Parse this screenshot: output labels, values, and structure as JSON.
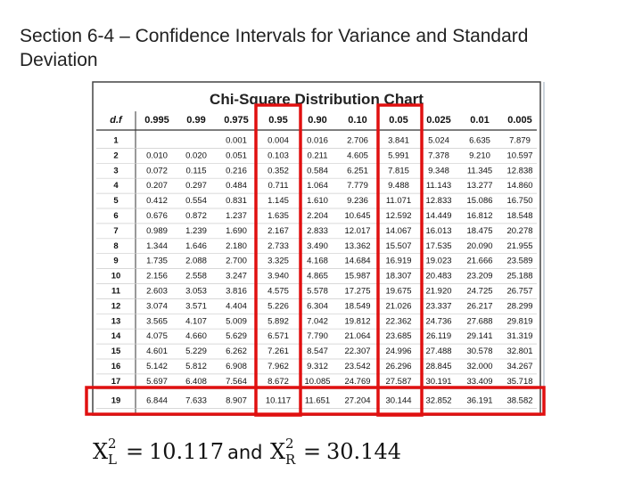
{
  "slide_title": "Section 6-4 – Confidence Intervals for Variance and Standard Deviation",
  "table": {
    "title": "Chi-Square Distribution Chart",
    "header": [
      "d.f",
      "0.995",
      "0.99",
      "0.975",
      "0.95",
      "0.90",
      "0.10",
      "0.05",
      "0.025",
      "0.01",
      "0.005"
    ],
    "rows": [
      [
        "1",
        null,
        null,
        "0.001",
        "0.004",
        "0.016",
        "2.706",
        "3.841",
        "5.024",
        "6.635",
        "7.879"
      ],
      [
        "2",
        "0.010",
        "0.020",
        "0.051",
        "0.103",
        "0.211",
        "4.605",
        "5.991",
        "7.378",
        "9.210",
        "10.597"
      ],
      [
        "3",
        "0.072",
        "0.115",
        "0.216",
        "0.352",
        "0.584",
        "6.251",
        "7.815",
        "9.348",
        "11.345",
        "12.838"
      ],
      [
        "4",
        "0.207",
        "0.297",
        "0.484",
        "0.711",
        "1.064",
        "7.779",
        "9.488",
        "11.143",
        "13.277",
        "14.860"
      ],
      [
        "5",
        "0.412",
        "0.554",
        "0.831",
        "1.145",
        "1.610",
        "9.236",
        "11.071",
        "12.833",
        "15.086",
        "16.750"
      ],
      [
        "6",
        "0.676",
        "0.872",
        "1.237",
        "1.635",
        "2.204",
        "10.645",
        "12.592",
        "14.449",
        "16.812",
        "18.548"
      ],
      [
        "7",
        "0.989",
        "1.239",
        "1.690",
        "2.167",
        "2.833",
        "12.017",
        "14.067",
        "16.013",
        "18.475",
        "20.278"
      ],
      [
        "8",
        "1.344",
        "1.646",
        "2.180",
        "2.733",
        "3.490",
        "13.362",
        "15.507",
        "17.535",
        "20.090",
        "21.955"
      ],
      [
        "9",
        "1.735",
        "2.088",
        "2.700",
        "3.325",
        "4.168",
        "14.684",
        "16.919",
        "19.023",
        "21.666",
        "23.589"
      ],
      [
        "10",
        "2.156",
        "2.558",
        "3.247",
        "3.940",
        "4.865",
        "15.987",
        "18.307",
        "20.483",
        "23.209",
        "25.188"
      ],
      [
        "11",
        "2.603",
        "3.053",
        "3.816",
        "4.575",
        "5.578",
        "17.275",
        "19.675",
        "21.920",
        "24.725",
        "26.757"
      ],
      [
        "12",
        "3.074",
        "3.571",
        "4.404",
        "5.226",
        "6.304",
        "18.549",
        "21.026",
        "23.337",
        "26.217",
        "28.299"
      ],
      [
        "13",
        "3.565",
        "4.107",
        "5.009",
        "5.892",
        "7.042",
        "19.812",
        "22.362",
        "24.736",
        "27.688",
        "29.819"
      ],
      [
        "14",
        "4.075",
        "4.660",
        "5.629",
        "6.571",
        "7.790",
        "21.064",
        "23.685",
        "26.119",
        "29.141",
        "31.319"
      ],
      [
        "15",
        "4.601",
        "5.229",
        "6.262",
        "7.261",
        "8.547",
        "22.307",
        "24.996",
        "27.488",
        "30.578",
        "32.801"
      ],
      [
        "16",
        "5.142",
        "5.812",
        "6.908",
        "7.962",
        "9.312",
        "23.542",
        "26.296",
        "28.845",
        "32.000",
        "34.267"
      ],
      [
        "17",
        "5.697",
        "6.408",
        "7.564",
        "8.672",
        "10.085",
        "24.769",
        "27.587",
        "30.191",
        "33.409",
        "35.718"
      ],
      [
        "19",
        "6.844",
        "7.633",
        "8.907",
        "10.117",
        "11.651",
        "27.204",
        "30.144",
        "32.852",
        "36.191",
        "38.582"
      ]
    ]
  },
  "formula": {
    "symbol": "X",
    "sup": "2",
    "left_sub": "L",
    "right_sub": "R",
    "equals": "=",
    "left_value": "10.117",
    "conjunction": "and",
    "right_value": "30.144"
  }
}
